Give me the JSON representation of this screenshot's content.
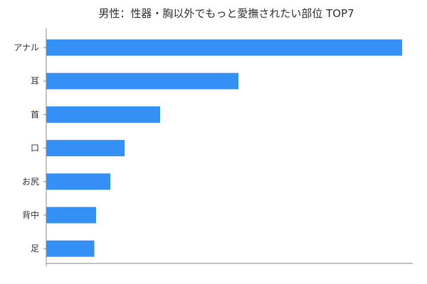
{
  "chart_data": {
    "type": "bar",
    "orientation": "horizontal",
    "title": "男性：性器・胸以外でもっと愛撫されたい部位 TOP7",
    "categories": [
      "アナル",
      "耳",
      "首",
      "口",
      "お尻",
      "背中",
      "足"
    ],
    "values": [
      100,
      54,
      32,
      22,
      18,
      14,
      13.5
    ],
    "xlim": [
      0,
      103
    ],
    "bar_color": "#3490f4",
    "axis_color": "#888888",
    "grid": false,
    "legend": "none"
  }
}
